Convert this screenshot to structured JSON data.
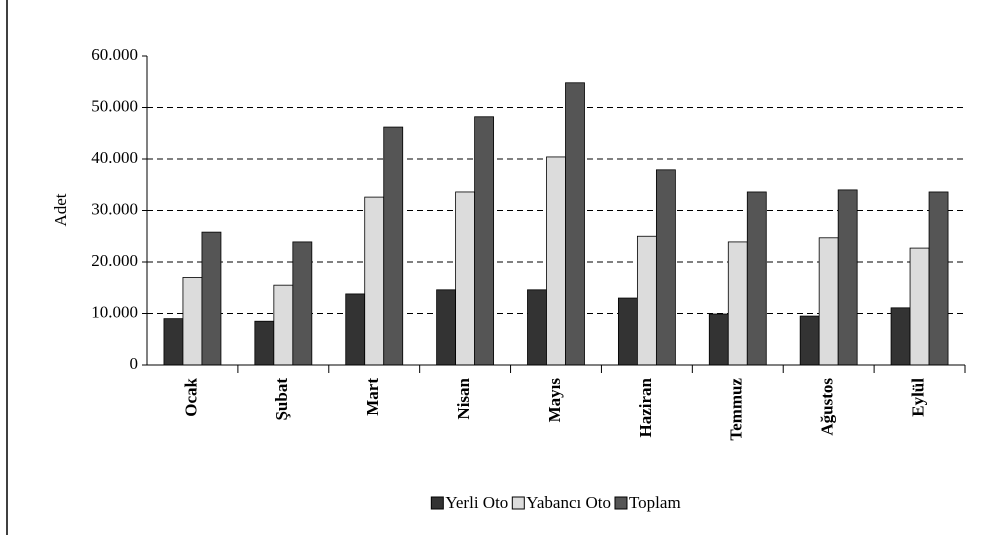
{
  "chart_data": {
    "type": "bar",
    "y_label": "Adet",
    "categories": [
      "Ocak",
      "Şubat",
      "Mart",
      "Nisan",
      "Mayıs",
      "Haziran",
      "Temmuz",
      "Ağustos",
      "Eylül"
    ],
    "series": [
      {
        "name": "Yerli Oto",
        "color": "#333333",
        "values": [
          9000,
          8500,
          13800,
          14600,
          14600,
          13000,
          9900,
          9500,
          11100
        ]
      },
      {
        "name": "Yabancı Oto",
        "color": "#dcdcdc",
        "values": [
          17000,
          15500,
          32600,
          33600,
          40400,
          25000,
          23900,
          24700,
          22700
        ]
      },
      {
        "name": "Toplam",
        "color": "#555555",
        "values": [
          25800,
          23900,
          46200,
          48200,
          54800,
          37900,
          33600,
          34000,
          33600
        ]
      }
    ],
    "ylim": [
      0,
      60000
    ],
    "yticks": [
      0,
      {
        "value": 10000,
        "label": "10.000"
      },
      {
        "value": 20000,
        "label": "20.000"
      },
      {
        "value": 30000,
        "label": "30.000"
      },
      {
        "value": 40000,
        "label": "40.000"
      },
      {
        "value": 50000,
        "label": "50.000"
      },
      {
        "value": 60000,
        "label": "60.000"
      }
    ],
    "grid": true,
    "legend": "bottom"
  }
}
